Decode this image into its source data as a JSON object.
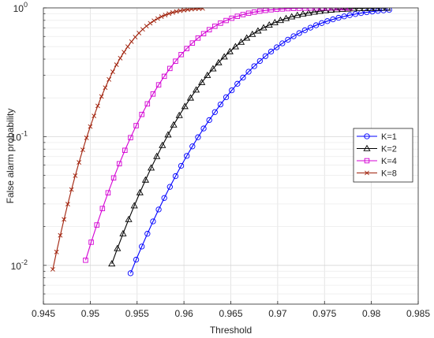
{
  "chart_data": {
    "type": "line",
    "title": "",
    "xlabel": "Threshold",
    "ylabel": "False alarm probability",
    "xlim": [
      0.945,
      0.985
    ],
    "ylim": [
      0.005,
      1
    ],
    "yscale": "log",
    "grid": true,
    "legend_position": "right",
    "x_ticks": [
      "0.945",
      "0.95",
      "0.955",
      "0.96",
      "0.965",
      "0.97",
      "0.975",
      "0.98",
      "0.985"
    ],
    "y_ticks": [
      {
        "base": "10",
        "exp": "-2",
        "value": 0.01
      },
      {
        "base": "10",
        "exp": "-1",
        "value": 0.1
      },
      {
        "base": "10",
        "exp": "0",
        "value": 1
      }
    ],
    "series": [
      {
        "name": "K=1",
        "color": "#0000ff",
        "marker": "circle",
        "x0": 0.9543,
        "x1": 0.982,
        "mu": 0.97,
        "sigma": 0.0066,
        "step": 0.0006
      },
      {
        "name": "K=2",
        "color": "#000000",
        "marker": "triangle",
        "x0": 0.9523,
        "x1": 0.982,
        "mu": 0.9655,
        "sigma": 0.0057,
        "step": 0.0006
      },
      {
        "name": "K=4",
        "color": "#d400d4",
        "marker": "square",
        "x0": 0.9495,
        "x1": 0.978,
        "mu": 0.9605,
        "sigma": 0.0048,
        "step": 0.0006
      },
      {
        "name": "K=8",
        "color": "#a0200a",
        "marker": "x",
        "x0": 0.946,
        "x1": 0.962,
        "mu": 0.954,
        "sigma": 0.0034,
        "step": 0.0004
      }
    ]
  }
}
